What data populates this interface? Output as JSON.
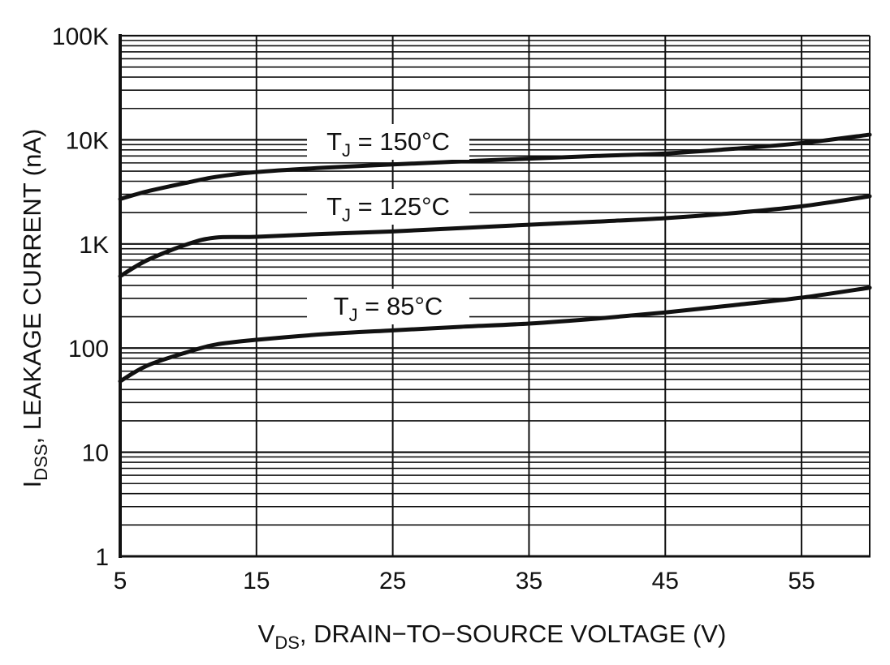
{
  "chart_data": {
    "type": "line",
    "title": "",
    "xlabel": {
      "main": "V",
      "sub": "DS",
      "rest": ", DRAIN−TO−SOURCE VOLTAGE (V)"
    },
    "ylabel": {
      "main": "I",
      "sub": "DSS",
      "rest": ", LEAKAGE CURRENT (nA)"
    },
    "x_scale": "linear",
    "y_scale": "log",
    "xlim": [
      5,
      60
    ],
    "ylim": [
      1,
      100000
    ],
    "x_ticks": [
      5,
      15,
      25,
      35,
      45,
      55
    ],
    "x_tick_labels": [
      "5",
      "15",
      "25",
      "35",
      "45",
      "55"
    ],
    "y_ticks": [
      1,
      10,
      100,
      1000,
      10000,
      100000
    ],
    "y_tick_labels": [
      "1",
      "10",
      "100",
      "1K",
      "10K",
      "100K"
    ],
    "grid": true,
    "line_color": "#111111",
    "series": [
      {
        "name": "T_J = 150°C",
        "label_main": "T",
        "label_sub": "J",
        "label_rest": " = 150°C",
        "x": [
          5,
          7,
          10,
          12,
          15,
          20,
          25,
          30,
          35,
          40,
          45,
          50,
          55,
          60
        ],
        "y": [
          2700,
          3200,
          3900,
          4400,
          4900,
          5400,
          5800,
          6200,
          6600,
          7000,
          7400,
          8200,
          9300,
          11200
        ]
      },
      {
        "name": "T_J = 125°C",
        "label_main": "T",
        "label_sub": "J",
        "label_rest": " = 125°C",
        "x": [
          5,
          7,
          10,
          12,
          15,
          20,
          25,
          30,
          35,
          40,
          45,
          50,
          55,
          60
        ],
        "y": [
          490,
          700,
          1000,
          1150,
          1170,
          1250,
          1320,
          1420,
          1530,
          1640,
          1770,
          1980,
          2300,
          2870
        ]
      },
      {
        "name": "T_J = 85°C",
        "label_main": "T",
        "label_sub": "J",
        "label_rest": " = 85°C",
        "x": [
          5,
          7,
          10,
          12,
          15,
          20,
          25,
          30,
          35,
          40,
          45,
          50,
          55,
          60
        ],
        "y": [
          48,
          68,
          92,
          108,
          120,
          136,
          148,
          160,
          172,
          192,
          220,
          258,
          305,
          380
        ]
      }
    ]
  }
}
